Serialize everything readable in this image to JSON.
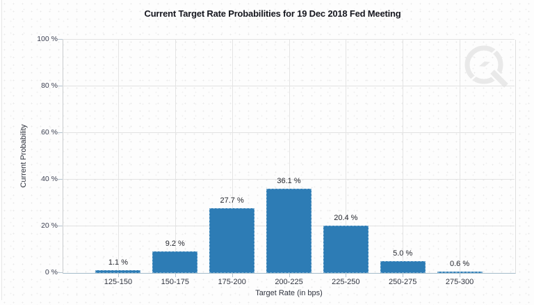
{
  "chart_data": {
    "type": "bar",
    "title": "Current Target Rate Probabilities for 19 Dec 2018 Fed Meeting",
    "xlabel": "Target Rate (in bps)",
    "ylabel": "Current Probability",
    "categories": [
      "125-150",
      "150-175",
      "175-200",
      "200-225",
      "225-250",
      "250-275",
      "275-300"
    ],
    "values": [
      1.1,
      9.2,
      27.7,
      36.1,
      20.4,
      5.0,
      0.6
    ],
    "bar_labels": [
      "1.1 %",
      "9.2 %",
      "27.7 %",
      "36.1 %",
      "20.4 %",
      "5.0 %",
      "0.6 %"
    ],
    "yticks": [
      {
        "value": 0,
        "label": "0 %"
      },
      {
        "value": 20,
        "label": "20 %"
      },
      {
        "value": 40,
        "label": "40 %"
      },
      {
        "value": 60,
        "label": "60 %"
      },
      {
        "value": 80,
        "label": "80 %"
      },
      {
        "value": 100,
        "label": "100 %"
      }
    ],
    "ylim": [
      0,
      100
    ],
    "grid": true,
    "legend": "none",
    "colors": {
      "bar": "#2d7cb5",
      "axis": "#a4bcca",
      "gridline": "#e2e2e2",
      "title_text": "#15161e",
      "tick_text": "#3d4152"
    },
    "watermark_icon": "quikstrike-lightning-q-logo"
  }
}
